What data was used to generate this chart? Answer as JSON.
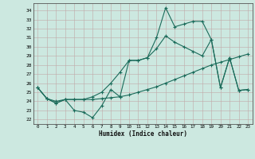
{
  "xlabel": "Humidex (Indice chaleur)",
  "xlim": [
    -0.5,
    23.5
  ],
  "ylim": [
    21.5,
    34.8
  ],
  "yticks": [
    22,
    23,
    24,
    25,
    26,
    27,
    28,
    29,
    30,
    31,
    32,
    33,
    34
  ],
  "xticks": [
    0,
    1,
    2,
    3,
    4,
    5,
    6,
    7,
    8,
    9,
    10,
    11,
    12,
    13,
    14,
    15,
    16,
    17,
    18,
    19,
    20,
    21,
    22,
    23
  ],
  "bg_color": "#cce8e0",
  "line_color": "#1a6b5a",
  "grid_color": "#b8d8d0",
  "line1_x": [
    0,
    1,
    2,
    3,
    4,
    5,
    6,
    7,
    8,
    9,
    10,
    11,
    12,
    13,
    14,
    15,
    16,
    17,
    18,
    19,
    20,
    21,
    22,
    23
  ],
  "line1_y": [
    25.5,
    24.3,
    23.8,
    24.2,
    23.0,
    22.8,
    22.2,
    23.5,
    25.3,
    24.5,
    28.5,
    28.5,
    28.8,
    31.0,
    34.3,
    32.2,
    32.5,
    32.8,
    32.8,
    30.8,
    25.5,
    28.8,
    25.2,
    25.3
  ],
  "line2_x": [
    0,
    1,
    2,
    3,
    4,
    5,
    6,
    7,
    8,
    9,
    10,
    11,
    12,
    13,
    14,
    15,
    16,
    17,
    18,
    19,
    20,
    21,
    22,
    23
  ],
  "line2_y": [
    25.5,
    24.3,
    24.0,
    24.2,
    24.2,
    24.2,
    24.2,
    24.3,
    24.4,
    24.5,
    24.7,
    25.0,
    25.3,
    25.6,
    26.0,
    26.4,
    26.8,
    27.2,
    27.6,
    28.0,
    28.3,
    28.6,
    28.9,
    29.2
  ],
  "line3_x": [
    0,
    1,
    2,
    3,
    4,
    5,
    6,
    7,
    8,
    9,
    10,
    11,
    12,
    13,
    14,
    15,
    16,
    17,
    18,
    19,
    20,
    21,
    22,
    23
  ],
  "line3_y": [
    25.5,
    24.3,
    23.8,
    24.2,
    24.2,
    24.2,
    24.5,
    25.0,
    26.0,
    27.2,
    28.5,
    28.5,
    28.8,
    29.8,
    31.2,
    30.5,
    30.0,
    29.5,
    29.0,
    30.8,
    25.5,
    28.8,
    25.2,
    25.3
  ]
}
